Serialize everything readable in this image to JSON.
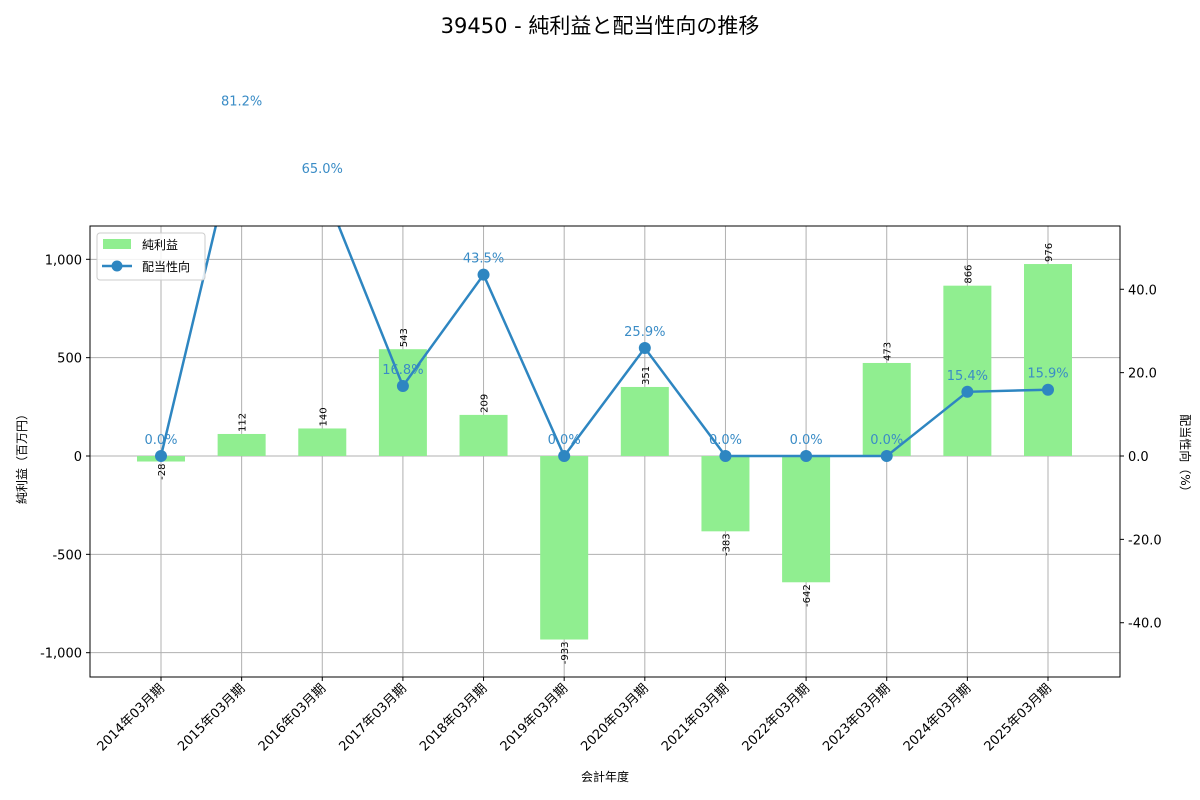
{
  "title": "39450 - 純利益と配当性向の推移",
  "chart_data": {
    "type": "bar+line",
    "title": "39450 - 純利益と配当性向の推移",
    "xlabel": "会計年度",
    "ylabel": "純利益（百万円）",
    "y2label": "配当性向（%）",
    "categories": [
      "2014年03月期",
      "2015年03月期",
      "2016年03月期",
      "2017年03月期",
      "2018年03月期",
      "2019年03月期",
      "2020年03月期",
      "2021年03月期",
      "2022年03月期",
      "2023年03月期",
      "2024年03月期",
      "2025年03月期"
    ],
    "series": [
      {
        "name": "純利益",
        "type": "bar",
        "axis": "left",
        "color": "#90ee90",
        "values": [
          -28,
          112,
          140,
          543,
          209,
          -933,
          351,
          -383,
          -642,
          473,
          866,
          976
        ]
      },
      {
        "name": "配当性向",
        "type": "line",
        "axis": "right",
        "color": "#2e86c1",
        "values": [
          0.0,
          81.2,
          65.0,
          16.8,
          43.5,
          0.0,
          25.9,
          0.0,
          0.0,
          0.0,
          15.4,
          15.9
        ],
        "labels": [
          "0.0%",
          "81.2%",
          "65.0%",
          "16.8%",
          "43.5%",
          "0.0%",
          "25.9%",
          "0.0%",
          "0.0%",
          "0.0%",
          "15.4%",
          "15.9%"
        ]
      }
    ],
    "ylim": [
      -1124,
      1169
    ],
    "y2lim": [
      -53,
      55.2
    ],
    "yticks": [
      -1000,
      -500,
      0,
      500,
      1000
    ],
    "ytick_labels": [
      "-1,000",
      "-500",
      "0",
      "500",
      "1,000"
    ],
    "y2ticks": [
      -40,
      -20,
      0,
      20,
      40
    ],
    "y2tick_labels": [
      "-40.0",
      "-20.0",
      "0.0",
      "20.0",
      "40.0"
    ],
    "grid": true,
    "legend_position": "upper left",
    "legend": [
      "純利益",
      "配当性向"
    ]
  }
}
